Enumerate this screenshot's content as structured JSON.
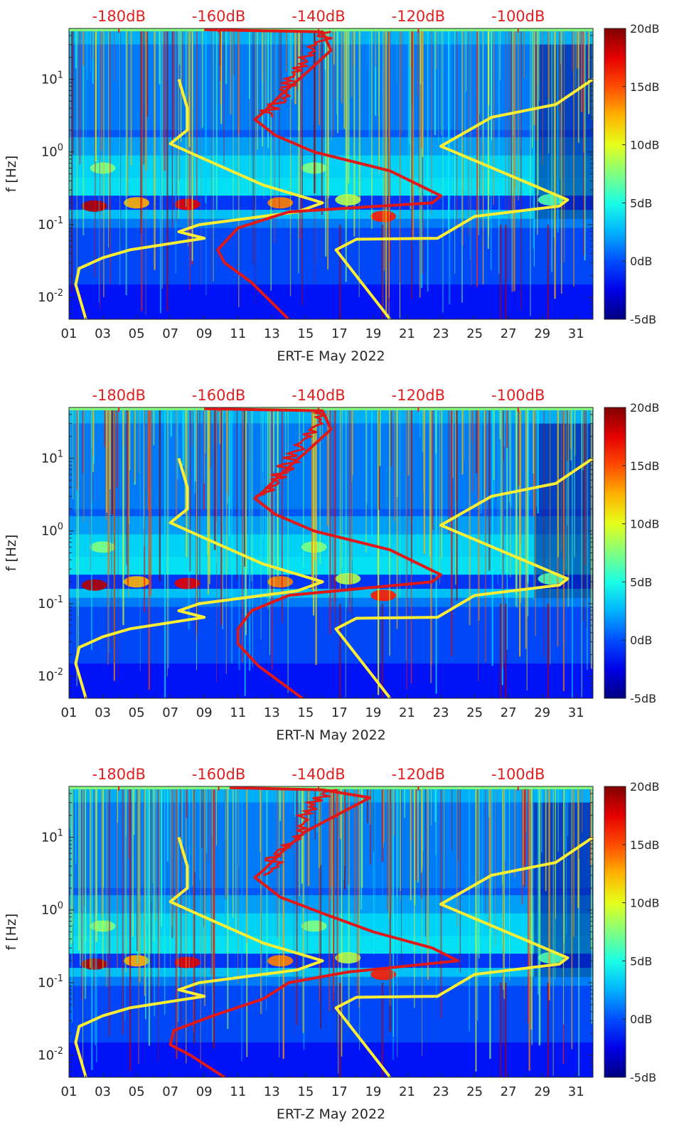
{
  "chart_data": [
    {
      "type": "heatmap",
      "title": "",
      "xlabel": "ERT-E May 2022",
      "ylabel": "f [Hz]",
      "x_ticks": [
        "01",
        "03",
        "05",
        "07",
        "09",
        "11",
        "13",
        "15",
        "17",
        "19",
        "21",
        "23",
        "25",
        "27",
        "29",
        "31"
      ],
      "xlim_days": [
        1,
        32
      ],
      "ylim_hz": [
        0.005,
        50
      ],
      "y_ticks": [
        "10^-2",
        "10^-1",
        "10^0",
        "10^1"
      ],
      "top_ticks": [
        "-180dB",
        "-160dB",
        "-140dB",
        "-120dB",
        "-100dB"
      ],
      "top_axis_db_range": [
        -190,
        -85
      ],
      "colorbar": {
        "ticks": [
          "20dB",
          "15dB",
          "10dB",
          "5dB",
          "0dB",
          "-5dB"
        ],
        "range_db": [
          -5,
          20
        ]
      },
      "series": [
        {
          "name": "yellow-left",
          "color": "#ffee33",
          "points": [
            [
              2.0,
              0.005
            ],
            [
              1.4,
              0.015
            ],
            [
              1.6,
              0.025
            ],
            [
              3.0,
              0.035
            ],
            [
              4.6,
              0.045
            ],
            [
              9.0,
              0.065
            ],
            [
              7.5,
              0.08
            ],
            [
              8.7,
              0.1
            ],
            [
              14.5,
              0.15
            ],
            [
              16.0,
              0.2
            ],
            [
              12.5,
              0.35
            ],
            [
              9.0,
              0.8
            ],
            [
              7.0,
              1.3
            ],
            [
              8.0,
              2.0
            ],
            [
              8.0,
              4.0
            ],
            [
              7.5,
              10.0
            ]
          ]
        },
        {
          "name": "yellow-right",
          "color": "#ffee33",
          "points": [
            [
              20.0,
              0.005
            ],
            [
              16.8,
              0.045
            ],
            [
              18.0,
              0.063
            ],
            [
              22.8,
              0.065
            ],
            [
              25.0,
              0.13
            ],
            [
              30.0,
              0.18
            ],
            [
              30.5,
              0.22
            ],
            [
              23.0,
              1.2
            ],
            [
              26.0,
              3.0
            ],
            [
              29.8,
              4.5
            ],
            [
              32.0,
              10.0
            ]
          ]
        },
        {
          "name": "red-median",
          "color": "#e01818",
          "points": [
            [
              14.0,
              0.005
            ],
            [
              11.8,
              0.016
            ],
            [
              10.2,
              0.03
            ],
            [
              9.8,
              0.045
            ],
            [
              11.0,
              0.09
            ],
            [
              14.0,
              0.15
            ],
            [
              22.5,
              0.2
            ],
            [
              23.0,
              0.25
            ],
            [
              20.0,
              0.55
            ],
            [
              15.5,
              1.0
            ],
            [
              13.2,
              1.7
            ],
            [
              12.0,
              2.8
            ],
            [
              12.5,
              3.5
            ],
            [
              13.5,
              6.0
            ],
            [
              15.0,
              12.0
            ],
            [
              16.5,
              25.0
            ],
            [
              16.0,
              45.0
            ],
            [
              9.0,
              48.0
            ]
          ]
        }
      ]
    },
    {
      "type": "heatmap",
      "title": "",
      "xlabel": "ERT-N May 2022",
      "ylabel": "f [Hz]",
      "x_ticks": [
        "01",
        "03",
        "05",
        "07",
        "09",
        "11",
        "13",
        "15",
        "17",
        "19",
        "21",
        "23",
        "25",
        "27",
        "29",
        "31"
      ],
      "xlim_days": [
        1,
        32
      ],
      "ylim_hz": [
        0.005,
        50
      ],
      "y_ticks": [
        "10^-2",
        "10^-1",
        "10^0",
        "10^1"
      ],
      "top_ticks": [
        "-180dB",
        "-160dB",
        "-140dB",
        "-120dB",
        "-100dB"
      ],
      "top_axis_db_range": [
        -190,
        -85
      ],
      "colorbar": {
        "ticks": [
          "20dB",
          "15dB",
          "10dB",
          "5dB",
          "0dB",
          "-5dB"
        ],
        "range_db": [
          -5,
          20
        ]
      },
      "series": [
        {
          "name": "yellow-left",
          "color": "#ffee33",
          "points": [
            [
              2.0,
              0.005
            ],
            [
              1.4,
              0.015
            ],
            [
              1.6,
              0.025
            ],
            [
              3.0,
              0.035
            ],
            [
              4.6,
              0.045
            ],
            [
              9.0,
              0.065
            ],
            [
              7.5,
              0.08
            ],
            [
              8.7,
              0.1
            ],
            [
              14.5,
              0.15
            ],
            [
              16.0,
              0.2
            ],
            [
              12.5,
              0.35
            ],
            [
              9.0,
              0.8
            ],
            [
              7.0,
              1.3
            ],
            [
              8.0,
              2.0
            ],
            [
              8.0,
              4.0
            ],
            [
              7.5,
              10.0
            ]
          ]
        },
        {
          "name": "yellow-right",
          "color": "#ffee33",
          "points": [
            [
              20.0,
              0.005
            ],
            [
              16.8,
              0.045
            ],
            [
              18.0,
              0.063
            ],
            [
              22.8,
              0.065
            ],
            [
              25.0,
              0.13
            ],
            [
              30.0,
              0.18
            ],
            [
              30.5,
              0.22
            ],
            [
              23.0,
              1.2
            ],
            [
              26.0,
              3.0
            ],
            [
              29.8,
              4.5
            ],
            [
              32.0,
              10.0
            ]
          ]
        },
        {
          "name": "red-median",
          "color": "#e01818",
          "points": [
            [
              14.8,
              0.005
            ],
            [
              12.2,
              0.014
            ],
            [
              11.0,
              0.028
            ],
            [
              11.0,
              0.045
            ],
            [
              11.8,
              0.08
            ],
            [
              14.0,
              0.13
            ],
            [
              22.5,
              0.2
            ],
            [
              23.0,
              0.25
            ],
            [
              20.0,
              0.55
            ],
            [
              15.5,
              1.0
            ],
            [
              13.2,
              1.7
            ],
            [
              12.0,
              2.8
            ],
            [
              12.5,
              3.5
            ],
            [
              13.5,
              6.0
            ],
            [
              15.0,
              12.0
            ],
            [
              16.5,
              25.0
            ],
            [
              16.0,
              45.0
            ],
            [
              9.0,
              48.0
            ]
          ]
        }
      ]
    },
    {
      "type": "heatmap",
      "title": "",
      "xlabel": "ERT-Z May 2022",
      "ylabel": "f [Hz]",
      "x_ticks": [
        "01",
        "03",
        "05",
        "07",
        "09",
        "11",
        "13",
        "15",
        "17",
        "19",
        "21",
        "23",
        "25",
        "27",
        "29",
        "31"
      ],
      "xlim_days": [
        1,
        32
      ],
      "ylim_hz": [
        0.005,
        50
      ],
      "y_ticks": [
        "10^-2",
        "10^-1",
        "10^0",
        "10^1"
      ],
      "top_ticks": [
        "-180dB",
        "-160dB",
        "-140dB",
        "-120dB",
        "-100dB"
      ],
      "top_axis_db_range": [
        -190,
        -85
      ],
      "colorbar": {
        "ticks": [
          "20dB",
          "15dB",
          "10dB",
          "5dB",
          "0dB",
          "-5dB"
        ],
        "range_db": [
          -5,
          20
        ]
      },
      "series": [
        {
          "name": "yellow-left",
          "color": "#ffee33",
          "points": [
            [
              2.0,
              0.005
            ],
            [
              1.4,
              0.015
            ],
            [
              1.6,
              0.025
            ],
            [
              3.0,
              0.035
            ],
            [
              4.6,
              0.045
            ],
            [
              9.0,
              0.065
            ],
            [
              7.5,
              0.08
            ],
            [
              8.7,
              0.1
            ],
            [
              14.5,
              0.15
            ],
            [
              16.0,
              0.2
            ],
            [
              12.5,
              0.35
            ],
            [
              9.0,
              0.8
            ],
            [
              7.0,
              1.3
            ],
            [
              8.0,
              2.0
            ],
            [
              8.0,
              4.0
            ],
            [
              7.5,
              10.0
            ]
          ]
        },
        {
          "name": "yellow-right",
          "color": "#ffee33",
          "points": [
            [
              20.0,
              0.005
            ],
            [
              16.8,
              0.045
            ],
            [
              18.0,
              0.063
            ],
            [
              22.8,
              0.065
            ],
            [
              25.0,
              0.13
            ],
            [
              30.0,
              0.18
            ],
            [
              30.5,
              0.22
            ],
            [
              23.0,
              1.2
            ],
            [
              26.0,
              3.0
            ],
            [
              29.8,
              4.5
            ],
            [
              32.0,
              10.0
            ]
          ]
        },
        {
          "name": "red-median",
          "color": "#e01818",
          "points": [
            [
              10.2,
              0.005
            ],
            [
              8.2,
              0.01
            ],
            [
              7.0,
              0.014
            ],
            [
              7.2,
              0.022
            ],
            [
              9.5,
              0.035
            ],
            [
              12.5,
              0.06
            ],
            [
              14.0,
              0.1
            ],
            [
              17.5,
              0.14
            ],
            [
              24.0,
              0.2
            ],
            [
              22.5,
              0.3
            ],
            [
              19.0,
              0.5
            ],
            [
              16.0,
              0.9
            ],
            [
              13.5,
              1.5
            ],
            [
              12.0,
              2.8
            ],
            [
              12.5,
              3.5
            ],
            [
              13.5,
              6.0
            ],
            [
              15.0,
              12.0
            ],
            [
              18.8,
              35.0
            ],
            [
              16.0,
              45.0
            ],
            [
              10.5,
              48.0
            ]
          ]
        }
      ]
    }
  ]
}
